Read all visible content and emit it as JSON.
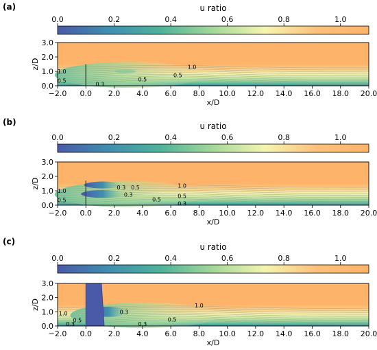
{
  "colorbar": {
    "label": "u ratio",
    "ticks": [
      "0.0",
      "0.2",
      "0.4",
      "0.6",
      "0.8",
      "1.0"
    ],
    "tick_values": [
      0.0,
      0.2,
      0.4,
      0.6,
      0.8,
      1.0
    ],
    "range": [
      0.0,
      1.1
    ],
    "colors": [
      "#4a5aa8",
      "#3f8fb0",
      "#4fb39a",
      "#a5d89a",
      "#f5f5b0",
      "#fdc07a",
      "#fdb46a"
    ]
  },
  "chart_data": [
    {
      "type": "heatmap",
      "panel_label": "(a)",
      "xlabel": "x/D",
      "ylabel": "z/D",
      "xlim": [
        -2.0,
        20.0
      ],
      "ylim": [
        0.0,
        3.0
      ],
      "x_ticks": [
        "−2.0",
        "0.0",
        "2.0",
        "4.0",
        "6.0",
        "8.0",
        "10.0",
        "12.0",
        "14.0",
        "16.0",
        "18.0",
        "20.0"
      ],
      "x_tick_values": [
        -2,
        0,
        2,
        4,
        6,
        8,
        10,
        12,
        14,
        16,
        18,
        20
      ],
      "y_ticks": [
        "0.0",
        "1.0",
        "2.0",
        "3.0"
      ],
      "y_tick_values": [
        0,
        1,
        2,
        3
      ],
      "obstacle": {
        "kind": "line",
        "x": 0.0,
        "z_bottom": 0.0,
        "z_top": 1.5
      },
      "contour_labels": [
        {
          "text": "1.0",
          "x": -1.7,
          "z": 1.0
        },
        {
          "text": "0.5",
          "x": -1.7,
          "z": 0.35
        },
        {
          "text": "0.3",
          "x": 1.0,
          "z": 0.12
        },
        {
          "text": "0.5",
          "x": 4.0,
          "z": 0.45
        },
        {
          "text": "0.5",
          "x": 6.5,
          "z": 0.75
        },
        {
          "text": "1.0",
          "x": 7.5,
          "z": 1.3
        }
      ]
    },
    {
      "type": "heatmap",
      "panel_label": "(b)",
      "xlabel": "x/D",
      "ylabel": "z/D",
      "xlim": [
        -2.0,
        20.0
      ],
      "ylim": [
        0.0,
        3.0
      ],
      "x_ticks": [
        "−2.0",
        "0.0",
        "2.0",
        "4.0",
        "6.0",
        "8.0",
        "10.0",
        "12.0",
        "14.0",
        "16.0",
        "18.0",
        "20.0"
      ],
      "x_tick_values": [
        -2,
        0,
        2,
        4,
        6,
        8,
        10,
        12,
        14,
        16,
        18,
        20
      ],
      "y_ticks": [
        "0.0",
        "1.0",
        "2.0",
        "3.0"
      ],
      "y_tick_values": [
        0,
        1,
        2,
        3
      ],
      "obstacle": {
        "kind": "line",
        "x": 0.0,
        "z_bottom": 0.0,
        "z_top": 1.7
      },
      "contour_labels": [
        {
          "text": "1.0",
          "x": -1.7,
          "z": 1.0
        },
        {
          "text": "0.5",
          "x": -1.7,
          "z": 0.35
        },
        {
          "text": "0.3",
          "x": 2.5,
          "z": 1.25
        },
        {
          "text": "0.5",
          "x": 3.5,
          "z": 1.25
        },
        {
          "text": "0.3",
          "x": 3.0,
          "z": 0.75
        },
        {
          "text": "0.5",
          "x": 5.0,
          "z": 0.4
        },
        {
          "text": "0.5",
          "x": 6.8,
          "z": 0.65
        },
        {
          "text": "0.3",
          "x": 6.8,
          "z": 0.12
        },
        {
          "text": "1.0",
          "x": 6.8,
          "z": 1.35
        }
      ]
    },
    {
      "type": "heatmap",
      "panel_label": "(c)",
      "xlabel": "x/D",
      "ylabel": "z/D",
      "xlim": [
        -2.0,
        20.0
      ],
      "ylim": [
        0.0,
        3.0
      ],
      "x_ticks": [
        "−2.0",
        "0.0",
        "2.0",
        "4.0",
        "6.0",
        "8.0",
        "10.0",
        "12.0",
        "14.0",
        "16.0",
        "18.0",
        "20.0"
      ],
      "x_tick_values": [
        -2,
        0,
        2,
        4,
        6,
        8,
        10,
        12,
        14,
        16,
        18,
        20
      ],
      "y_ticks": [
        "0.0",
        "1.0",
        "2.0",
        "3.0"
      ],
      "y_tick_values": [
        0,
        1,
        2,
        3
      ],
      "obstacle": {
        "kind": "block",
        "x_left": 0.0,
        "x_right": 1.1,
        "z_bottom": 0.0,
        "z_top": 3.0
      },
      "contour_labels": [
        {
          "text": "1.0",
          "x": -1.6,
          "z": 0.9
        },
        {
          "text": "0.5",
          "x": -0.6,
          "z": 0.4
        },
        {
          "text": "0.3",
          "x": -1.1,
          "z": 0.15
        },
        {
          "text": "0.3",
          "x": 2.7,
          "z": 1.0
        },
        {
          "text": "0.3",
          "x": 4.0,
          "z": 0.15
        },
        {
          "text": "0.5",
          "x": 6.1,
          "z": 0.45
        },
        {
          "text": "1.0",
          "x": 8.0,
          "z": 1.45
        }
      ]
    }
  ]
}
